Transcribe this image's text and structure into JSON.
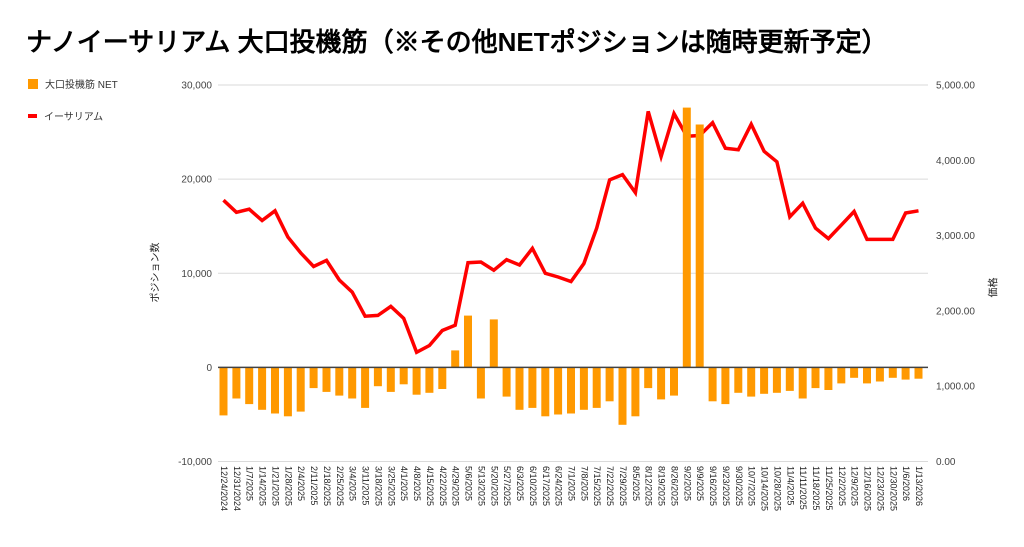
{
  "title": "ナノイーサリアム 大口投機筋（※その他NETポジションは随時更新予定）",
  "legend": [
    {
      "label": "大口投機筋 NET",
      "color": "#FF9900",
      "type": "bar"
    },
    {
      "label": "イーサリアム",
      "color": "#FF0000",
      "type": "line"
    }
  ],
  "left_axis": {
    "title": "ポジション数"
  },
  "right_axis": {
    "title": "価格"
  },
  "colors": {
    "bar": "#FF9900",
    "line": "#FF0000",
    "grid": "#DADADA",
    "zero_line": "#424242",
    "tick_text": "#444444",
    "x_label_text": "#222222"
  },
  "chart_data": {
    "type": "bar",
    "subtype": "combo-bar-line-dual-axis",
    "title": "ナノイーサリアム 大口投機筋（※その他NETポジションは随時更新予定）",
    "grid": true,
    "legend_position": "top-left",
    "left_ylim": [
      -10000,
      30000
    ],
    "right_ylim": [
      0,
      5000
    ],
    "left_ticks": [
      {
        "label": "30,000",
        "value": 30000
      },
      {
        "label": "20,000",
        "value": 20000
      },
      {
        "label": "10,000",
        "value": 10000
      },
      {
        "label": "0",
        "value": 0
      },
      {
        "label": "-10,000",
        "value": -10000
      }
    ],
    "right_ticks": [
      {
        "label": "5,000.00",
        "value": 5000
      },
      {
        "label": "4,000.00",
        "value": 4000
      },
      {
        "label": "3,000.00",
        "value": 3000
      },
      {
        "label": "2,000.00",
        "value": 2000
      },
      {
        "label": "1,000.00",
        "value": 1000
      },
      {
        "label": "0.00",
        "value": 0
      }
    ],
    "categories": [
      "12/24/2024",
      "12/31/2024",
      "1/7/2025",
      "1/14/2025",
      "1/21/2025",
      "1/28/2025",
      "2/4/2025",
      "2/11/2025",
      "2/18/2025",
      "2/25/2025",
      "3/4/2025",
      "3/11/2025",
      "3/18/2025",
      "3/25/2025",
      "4/1/2025",
      "4/8/2025",
      "4/15/2025",
      "4/22/2025",
      "4/29/2025",
      "5/6/2025",
      "5/13/2025",
      "5/20/2025",
      "5/27/2025",
      "6/3/2025",
      "6/10/2025",
      "6/17/2025",
      "6/24/2025",
      "7/1/2025",
      "7/8/2025",
      "7/15/2025",
      "7/22/2025",
      "7/29/2025",
      "8/5/2025",
      "8/12/2025",
      "8/19/2025",
      "8/26/2025",
      "9/2/2025",
      "9/9/2025",
      "9/16/2025",
      "9/23/2025",
      "9/30/2025",
      "10/7/2025",
      "10/14/2025",
      "10/28/2025",
      "11/4/2025",
      "11/11/2025",
      "11/18/2025",
      "11/25/2025",
      "12/2/2025",
      "12/9/2025",
      "12/16/2025",
      "12/23/2025",
      "12/30/2025",
      "1/6/2026",
      "1/13/2026"
    ],
    "series": [
      {
        "name": "大口投機筋 NET",
        "type": "bar",
        "axis": "left",
        "color": "#FF9900",
        "values": [
          -5100,
          -3300,
          -3900,
          -4500,
          -4900,
          -5200,
          -4700,
          -2200,
          -2600,
          -3000,
          -3300,
          -4300,
          -2000,
          -2600,
          -1800,
          -2900,
          -2700,
          -2300,
          1800,
          5500,
          -3300,
          5100,
          -3100,
          -4500,
          -4300,
          -5200,
          -5000,
          -4900,
          -4500,
          -4300,
          -3600,
          -6100,
          -5200,
          -2200,
          -3400,
          -3000,
          27600,
          25800,
          -3600,
          -3900,
          -2700,
          -3100,
          -2800,
          -2700,
          -2500,
          -3300,
          -2200,
          -2400,
          -1700,
          -1100,
          -1700,
          -1500,
          -1100,
          -1300,
          -1200
        ]
      },
      {
        "name": "イーサリアム",
        "type": "line",
        "axis": "right",
        "color": "#FF0000",
        "values": [
          3470,
          3310,
          3350,
          3200,
          3330,
          2980,
          2770,
          2590,
          2670,
          2410,
          2250,
          1930,
          1940,
          2060,
          1900,
          1450,
          1540,
          1740,
          1810,
          2640,
          2650,
          2540,
          2680,
          2610,
          2830,
          2500,
          2450,
          2390,
          2630,
          3100,
          3740,
          3810,
          3570,
          4650,
          4050,
          4620,
          4320,
          4330,
          4500,
          4160,
          4140,
          4480,
          4120,
          3980,
          3250,
          3430,
          3100,
          2960,
          3140,
          3320,
          2950,
          2950,
          2950,
          3300,
          3330
        ]
      }
    ]
  }
}
